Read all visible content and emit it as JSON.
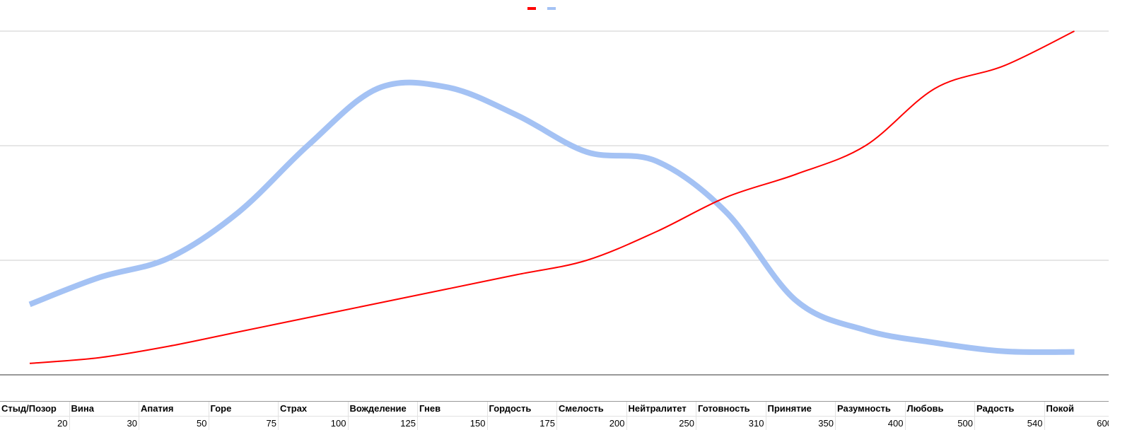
{
  "chart_data": {
    "type": "line",
    "categories": [
      "Стыд/Позор",
      "Вина",
      "Апатия",
      "Горе",
      "Страх",
      "Вожделение",
      "Гнев",
      "Гордость",
      "Смелость",
      "Нейтралитет",
      "Готовность",
      "Принятие",
      "Разумность",
      "Любовь",
      "Радость",
      "Покой"
    ],
    "series": [
      {
        "color": "#ff0000",
        "values": [
          20,
          30,
          50,
          75,
          100,
          125,
          150,
          175,
          200,
          250,
          310,
          350,
          400,
          500,
          540,
          600
        ]
      },
      {
        "color": "#a4c2f4",
        "values": [
          123,
          170,
          204,
          284,
          401,
          500,
          502,
          453,
          389,
          373,
          284,
          130,
          78,
          56,
          41,
          40
        ]
      }
    ],
    "ylim": [
      0,
      600
    ],
    "yticks": [
      0,
      200,
      400,
      600
    ],
    "grid": true,
    "legend": "top"
  }
}
